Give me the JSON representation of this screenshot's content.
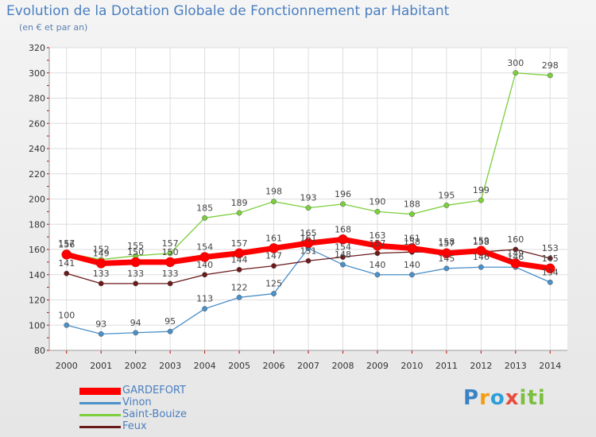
{
  "header": {
    "title": "Evolution de la Dotation Globale de Fonctionnement par Habitant",
    "subtitle": "(en € et par an)"
  },
  "logo": {
    "text": "Proxiti"
  },
  "chart_data": {
    "type": "line",
    "title": "Evolution de la Dotation Globale de Fonctionnement par Habitant",
    "subtitle": "(en € et par an)",
    "x": [
      "2000",
      "2001",
      "2002",
      "2003",
      "2004",
      "2005",
      "2006",
      "2007",
      "2008",
      "2009",
      "2010",
      "2011",
      "2012",
      "2013",
      "2014"
    ],
    "ylim": [
      80,
      320
    ],
    "yticks": [
      80,
      100,
      120,
      140,
      160,
      180,
      200,
      220,
      240,
      260,
      280,
      300,
      320
    ],
    "grid": true,
    "legend_position": "bottom-left",
    "series": [
      {
        "name": "GARDEFORT",
        "color": "#ff0000",
        "values": [
          156,
          149,
          150,
          150,
          154,
          157,
          161,
          165,
          168,
          163,
          161,
          157,
          159,
          149,
          145
        ]
      },
      {
        "name": "Vinon",
        "color": "#4a90c9",
        "values": [
          100,
          93,
          94,
          95,
          113,
          122,
          125,
          161,
          148,
          140,
          140,
          145,
          146,
          146,
          134
        ]
      },
      {
        "name": "Saint-Bouize",
        "color": "#7ccf3c",
        "values": [
          157,
          152,
          155,
          157,
          185,
          189,
          198,
          193,
          196,
          190,
          188,
          195,
          199,
          300,
          298
        ]
      },
      {
        "name": "Feux",
        "color": "#6b1a1a",
        "values": [
          141,
          133,
          133,
          133,
          140,
          144,
          147,
          151,
          154,
          157,
          158,
          158,
          158,
          160,
          153
        ]
      }
    ]
  }
}
